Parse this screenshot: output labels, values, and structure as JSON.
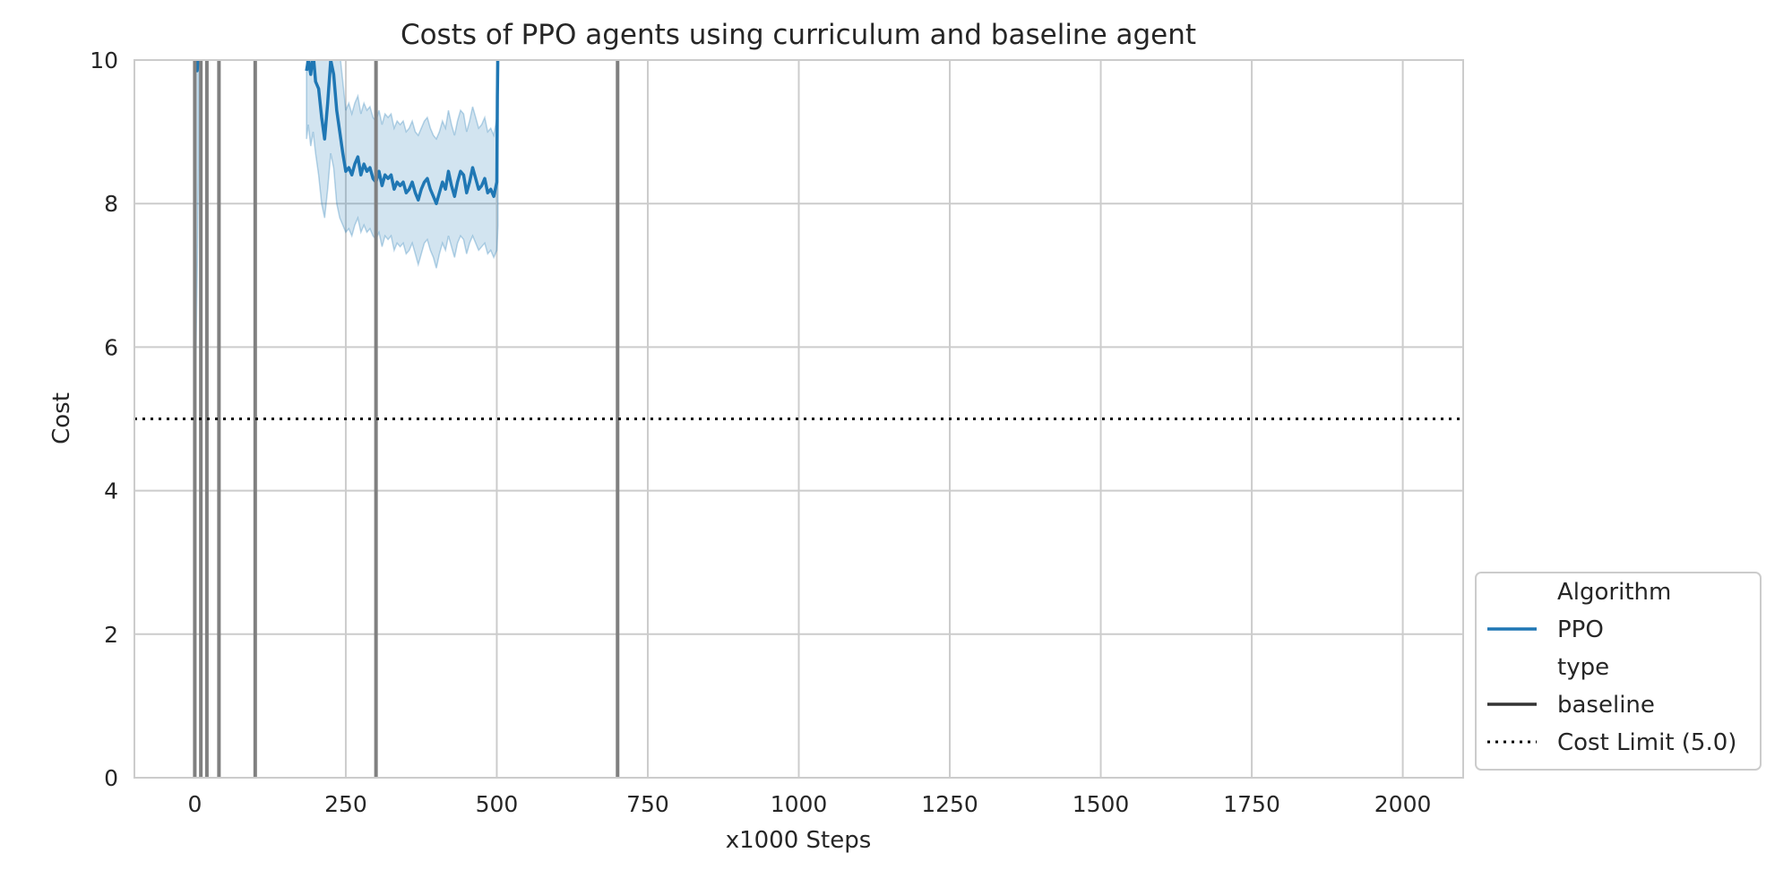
{
  "chart_data": {
    "type": "line",
    "title": "Costs of PPO agents using curriculum and baseline agent",
    "xlabel": "x1000 Steps",
    "ylabel": "Cost",
    "xlim": [
      -100,
      2100
    ],
    "ylim": [
      0,
      10
    ],
    "xticks": [
      0,
      250,
      500,
      750,
      1000,
      1250,
      1500,
      1750,
      2000
    ],
    "yticks": [
      0,
      2,
      4,
      6,
      8,
      10
    ],
    "grid": true,
    "legend_position": "lower-right outside",
    "legend": {
      "entries": [
        {
          "label": "Algorithm",
          "style": "header"
        },
        {
          "label": "PPO",
          "style": "solid",
          "color": "#1f77b4"
        },
        {
          "label": "type",
          "style": "header"
        },
        {
          "label": "baseline",
          "style": "solid",
          "color": "#333333"
        },
        {
          "label": "Cost Limit (5.0)",
          "style": "dotted",
          "color": "#000000"
        }
      ]
    },
    "cost_limit": 5.0,
    "curriculum_stage_lines_x": [
      0,
      10,
      20,
      40,
      100,
      300,
      700
    ],
    "series": [
      {
        "name": "PPO",
        "color": "#1f77b4",
        "segments": [
          {
            "x": [
              0,
              2,
              4,
              6
            ],
            "y": [
              10.2,
              9.9,
              9.85,
              10.1
            ],
            "lower": [
              5.4,
              6.0,
              7.0,
              8.5
            ],
            "upper": [
              10.5,
              10.5,
              10.5,
              10.5
            ]
          },
          {
            "x": [
              185,
              188,
              192,
              196,
              200,
              205,
              210,
              215,
              220,
              225,
              230,
              235,
              240,
              245,
              250,
              255,
              260,
              265,
              270,
              275,
              280,
              285,
              290,
              295,
              300,
              305,
              310,
              315,
              320,
              325,
              330,
              335,
              340,
              345,
              350,
              355,
              360,
              365,
              370,
              375,
              380,
              385,
              390,
              395,
              400,
              405,
              410,
              415,
              420,
              425,
              430,
              435,
              440,
              445,
              450,
              455,
              460,
              465,
              470,
              475,
              480,
              485,
              490,
              495,
              500,
              501,
              502
            ],
            "y": [
              9.85,
              10.0,
              9.8,
              10.1,
              9.7,
              9.6,
              9.2,
              8.9,
              9.4,
              10.0,
              9.8,
              9.3,
              9.0,
              8.7,
              8.45,
              8.5,
              8.4,
              8.55,
              8.65,
              8.4,
              8.55,
              8.45,
              8.5,
              8.35,
              8.3,
              8.45,
              8.25,
              8.4,
              8.35,
              8.4,
              8.2,
              8.3,
              8.25,
              8.3,
              8.15,
              8.2,
              8.3,
              8.15,
              8.05,
              8.2,
              8.3,
              8.35,
              8.2,
              8.1,
              8.0,
              8.15,
              8.3,
              8.2,
              8.45,
              8.25,
              8.1,
              8.3,
              8.45,
              8.4,
              8.15,
              8.3,
              8.5,
              8.35,
              8.2,
              8.25,
              8.35,
              8.15,
              8.2,
              8.1,
              8.3,
              9.5,
              10.2
            ],
            "lower": [
              8.9,
              9.1,
              8.8,
              9.0,
              8.7,
              8.4,
              8.0,
              7.8,
              8.2,
              8.7,
              8.5,
              8.0,
              7.8,
              7.7,
              7.6,
              7.65,
              7.55,
              7.7,
              7.8,
              7.6,
              7.7,
              7.6,
              7.65,
              7.55,
              7.5,
              7.6,
              7.4,
              7.55,
              7.5,
              7.55,
              7.35,
              7.45,
              7.4,
              7.45,
              7.3,
              7.35,
              7.45,
              7.3,
              7.15,
              7.3,
              7.45,
              7.5,
              7.35,
              7.25,
              7.1,
              7.3,
              7.45,
              7.35,
              7.55,
              7.4,
              7.25,
              7.45,
              7.55,
              7.5,
              7.3,
              7.45,
              7.55,
              7.45,
              7.35,
              7.4,
              7.45,
              7.3,
              7.35,
              7.25,
              7.35,
              7.5,
              7.7
            ],
            "upper": [
              10.5,
              10.5,
              10.5,
              10.5,
              10.5,
              10.5,
              10.3,
              10.0,
              10.5,
              10.5,
              10.5,
              10.4,
              10.1,
              9.7,
              9.3,
              9.4,
              9.25,
              9.4,
              9.5,
              9.25,
              9.4,
              9.3,
              9.35,
              9.2,
              9.15,
              9.3,
              9.1,
              9.25,
              9.2,
              9.25,
              9.05,
              9.15,
              9.1,
              9.15,
              9.0,
              9.05,
              9.15,
              9.0,
              8.95,
              9.05,
              9.15,
              9.2,
              9.05,
              8.95,
              8.9,
              9.0,
              9.15,
              9.05,
              9.3,
              9.1,
              8.95,
              9.15,
              9.3,
              9.25,
              9.0,
              9.15,
              9.35,
              9.2,
              9.05,
              9.1,
              9.2,
              9.0,
              9.05,
              8.95,
              9.2,
              10.0,
              10.5
            ]
          }
        ]
      }
    ]
  }
}
